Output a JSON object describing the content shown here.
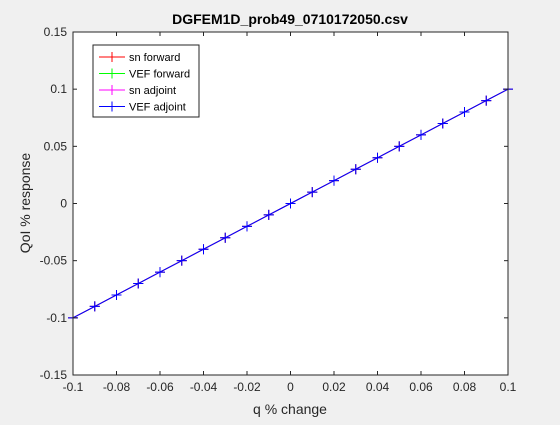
{
  "chart_data": {
    "type": "line",
    "title": "DGFEM1D_prob49_0710172050.csv",
    "xlabel": "q % change",
    "ylabel": "QoI % response",
    "xlim": [
      -0.1,
      0.1
    ],
    "ylim": [
      -0.15,
      0.15
    ],
    "x_ticks": [
      -0.1,
      -0.08,
      -0.06,
      -0.04,
      -0.02,
      0,
      0.02,
      0.04,
      0.06,
      0.08,
      0.1
    ],
    "x_tick_labels": [
      "-0.1",
      "-0.08",
      "-0.06",
      "-0.04",
      "-0.02",
      "0",
      "0.02",
      "0.04",
      "0.06",
      "0.08",
      "0.1"
    ],
    "y_ticks": [
      -0.15,
      -0.1,
      -0.05,
      0,
      0.05,
      0.1,
      0.15
    ],
    "y_tick_labels": [
      "-0.15",
      "-0.1",
      "-0.05",
      "0",
      "0.05",
      "0.1",
      "0.15"
    ],
    "grid": false,
    "legend_position": "top-left",
    "x": [
      -0.1,
      -0.09,
      -0.08,
      -0.07,
      -0.06,
      -0.05,
      -0.04,
      -0.03,
      -0.02,
      -0.01,
      0,
      0.01,
      0.02,
      0.03,
      0.04,
      0.05,
      0.06,
      0.07,
      0.08,
      0.09,
      0.1
    ],
    "series": [
      {
        "name": "sn forward",
        "color": "#ff0000",
        "marker": "+",
        "values": [
          -0.1,
          -0.09,
          -0.08,
          -0.07,
          -0.06,
          -0.05,
          -0.04,
          -0.03,
          -0.02,
          -0.01,
          0,
          0.01,
          0.02,
          0.03,
          0.04,
          0.05,
          0.06,
          0.07,
          0.08,
          0.09,
          0.1
        ]
      },
      {
        "name": "VEF forward",
        "color": "#00ff00",
        "marker": "+",
        "values": [
          -0.1,
          -0.09,
          -0.08,
          -0.07,
          -0.06,
          -0.05,
          -0.04,
          -0.03,
          -0.02,
          -0.01,
          0,
          0.01,
          0.02,
          0.03,
          0.04,
          0.05,
          0.06,
          0.07,
          0.08,
          0.09,
          0.1
        ]
      },
      {
        "name": "sn adjoint",
        "color": "#ff00ff",
        "marker": "+",
        "values": [
          -0.1,
          -0.09,
          -0.08,
          -0.07,
          -0.06,
          -0.05,
          -0.04,
          -0.03,
          -0.02,
          -0.01,
          0,
          0.01,
          0.02,
          0.03,
          0.04,
          0.05,
          0.06,
          0.07,
          0.08,
          0.09,
          0.1
        ]
      },
      {
        "name": "VEF adjoint",
        "color": "#0000ff",
        "marker": "+",
        "values": [
          -0.1,
          -0.09,
          -0.08,
          -0.07,
          -0.06,
          -0.05,
          -0.04,
          -0.03,
          -0.02,
          -0.01,
          0,
          0.01,
          0.02,
          0.03,
          0.04,
          0.05,
          0.06,
          0.07,
          0.08,
          0.09,
          0.1
        ]
      }
    ]
  }
}
